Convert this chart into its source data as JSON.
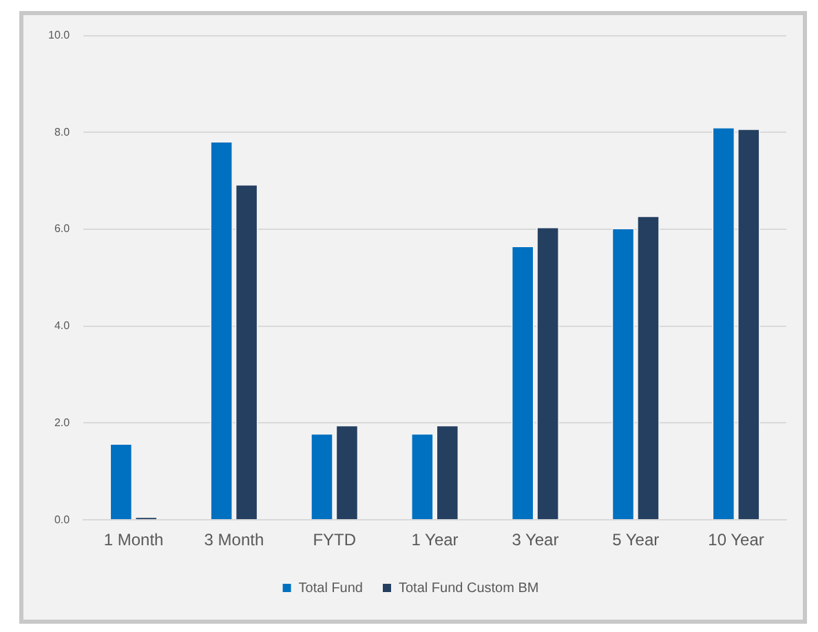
{
  "chart_data": {
    "type": "bar",
    "categories": [
      "1 Month",
      "3 Month",
      "FYTD",
      "1 Year",
      "3 Year",
      "5 Year",
      "10 Year"
    ],
    "series": [
      {
        "name": "Total Fund",
        "color": "#0070c0",
        "values": [
          1.58,
          7.82,
          1.79,
          1.79,
          5.66,
          6.03,
          8.11
        ]
      },
      {
        "name": "Total Fund Custom BM",
        "color": "#243f60",
        "values": [
          0.07,
          6.93,
          1.96,
          1.96,
          6.05,
          6.28,
          8.08
        ]
      }
    ],
    "ylim": [
      0,
      10
    ],
    "yticks": [
      {
        "value": 0,
        "label": "0.0"
      },
      {
        "value": 2,
        "label": "2.0"
      },
      {
        "value": 4,
        "label": "4.0"
      },
      {
        "value": 6,
        "label": "6.0"
      },
      {
        "value": 8,
        "label": "8.0"
      },
      {
        "value": 10,
        "label": "10.0"
      }
    ],
    "grid": "y",
    "legend": "bottom"
  }
}
